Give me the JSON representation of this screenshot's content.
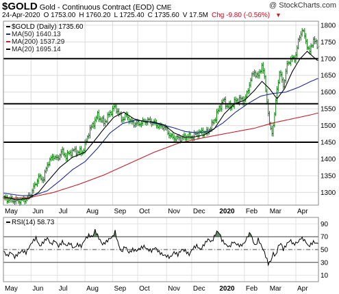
{
  "header": {
    "symbol": "$GOLD",
    "title": "Gold - Continuous Contract (EOD)",
    "exchange": "CME",
    "date": "24-Apr-2020",
    "open": "O 1753.00",
    "high": "H 1760.20",
    "low": "L 1725.40",
    "close": "C 1735.60",
    "volume": "V 17.5M",
    "change": "Chg -9.80 (-0.56%)",
    "watermark": "@ StockCharts.com"
  },
  "chart_data": [
    {
      "type": "line",
      "name": "price",
      "legend": [
        {
          "label": "$GOLD (Daily) 1735.60",
          "color": "#000000"
        },
        {
          "label": "MA(50) 1640.13",
          "color": "#1f2c8f"
        },
        {
          "label": "MA(200) 1537.29",
          "color": "#c0202a"
        },
        {
          "label": "MA(20) 1695.14",
          "color": "#000000"
        }
      ],
      "months": [
        {
          "label": "May",
          "d": 0
        },
        {
          "label": "Jun",
          "d": 22
        },
        {
          "label": "Jul",
          "d": 43
        },
        {
          "label": "Aug",
          "d": 65
        },
        {
          "label": "Sep",
          "d": 87
        },
        {
          "label": "Oct",
          "d": 107
        },
        {
          "label": "Nov",
          "d": 130
        },
        {
          "label": "Dec",
          "d": 150
        },
        {
          "label": "2020",
          "d": 171,
          "bold": true
        },
        {
          "label": "Feb",
          "d": 192
        },
        {
          "label": "Mar",
          "d": 211
        },
        {
          "label": "Apr",
          "d": 233
        }
      ],
      "yticks": [
        1300,
        1350,
        1400,
        1450,
        1500,
        1550,
        1600,
        1650,
        1700,
        1750,
        1800
      ],
      "ylim": [
        1262,
        1812
      ],
      "xlim": [
        0,
        251
      ],
      "hlines": [
        1700,
        1565,
        1450
      ],
      "keypoints": [
        [
          0,
          1282
        ],
        [
          8,
          1276
        ],
        [
          14,
          1275
        ],
        [
          19,
          1282
        ],
        [
          22,
          1296
        ],
        [
          25,
          1322
        ],
        [
          28,
          1345
        ],
        [
          32,
          1340
        ],
        [
          35,
          1385
        ],
        [
          40,
          1410
        ],
        [
          43,
          1398
        ],
        [
          46,
          1423
        ],
        [
          50,
          1408
        ],
        [
          53,
          1418
        ],
        [
          56,
          1425
        ],
        [
          60,
          1420
        ],
        [
          63,
          1422
        ],
        [
          65,
          1440
        ],
        [
          68,
          1480
        ],
        [
          72,
          1508
        ],
        [
          75,
          1530
        ],
        [
          80,
          1508
        ],
        [
          83,
          1525
        ],
        [
          88,
          1555
        ],
        [
          91,
          1545
        ],
        [
          94,
          1518
        ],
        [
          98,
          1530
        ],
        [
          102,
          1508
        ],
        [
          107,
          1505
        ],
        [
          111,
          1510
        ],
        [
          115,
          1515
        ],
        [
          120,
          1508
        ],
        [
          125,
          1495
        ],
        [
          128,
          1498
        ],
        [
          130,
          1485
        ],
        [
          134,
          1465
        ],
        [
          138,
          1462
        ],
        [
          142,
          1462
        ],
        [
          146,
          1468
        ],
        [
          150,
          1465
        ],
        [
          154,
          1476
        ],
        [
          158,
          1480
        ],
        [
          162,
          1478
        ],
        [
          166,
          1500
        ],
        [
          169,
          1525
        ],
        [
          172,
          1552
        ],
        [
          175,
          1575
        ],
        [
          178,
          1560
        ],
        [
          181,
          1555
        ],
        [
          184,
          1570
        ],
        [
          188,
          1580
        ],
        [
          191,
          1573
        ],
        [
          194,
          1592
        ],
        [
          197,
          1640
        ],
        [
          200,
          1660
        ],
        [
          203,
          1645
        ],
        [
          206,
          1682
        ],
        [
          208,
          1640
        ],
        [
          210,
          1575
        ],
        [
          212,
          1500
        ],
        [
          214,
          1480
        ],
        [
          216,
          1530
        ],
        [
          218,
          1610
        ],
        [
          220,
          1660
        ],
        [
          223,
          1620
        ],
        [
          226,
          1680
        ],
        [
          229,
          1700
        ],
        [
          232,
          1698
        ],
        [
          235,
          1750
        ],
        [
          238,
          1790
        ],
        [
          241,
          1752
        ],
        [
          244,
          1718
        ],
        [
          247,
          1760
        ],
        [
          250,
          1736
        ]
      ],
      "ma50_points": [
        [
          0,
          1298
        ],
        [
          15,
          1290
        ],
        [
          25,
          1292
        ],
        [
          35,
          1305
        ],
        [
          45,
          1335
        ],
        [
          55,
          1368
        ],
        [
          65,
          1392
        ],
        [
          75,
          1432
        ],
        [
          85,
          1478
        ],
        [
          95,
          1506
        ],
        [
          105,
          1516
        ],
        [
          115,
          1512
        ],
        [
          125,
          1503
        ],
        [
          135,
          1494
        ],
        [
          145,
          1482
        ],
        [
          155,
          1478
        ],
        [
          165,
          1484
        ],
        [
          175,
          1508
        ],
        [
          185,
          1540
        ],
        [
          195,
          1566
        ],
        [
          205,
          1588
        ],
        [
          215,
          1596
        ],
        [
          225,
          1600
        ],
        [
          235,
          1614
        ],
        [
          245,
          1632
        ],
        [
          250,
          1640
        ]
      ],
      "ma200_points": [
        [
          0,
          1282
        ],
        [
          20,
          1284
        ],
        [
          40,
          1300
        ],
        [
          60,
          1324
        ],
        [
          80,
          1352
        ],
        [
          100,
          1386
        ],
        [
          120,
          1420
        ],
        [
          140,
          1448
        ],
        [
          160,
          1464
        ],
        [
          180,
          1478
        ],
        [
          200,
          1492
        ],
        [
          215,
          1508
        ],
        [
          230,
          1520
        ],
        [
          245,
          1532
        ],
        [
          250,
          1537
        ]
      ],
      "ma20_points": [
        [
          0,
          1288
        ],
        [
          10,
          1278
        ],
        [
          20,
          1282
        ],
        [
          28,
          1300
        ],
        [
          35,
          1332
        ],
        [
          45,
          1375
        ],
        [
          55,
          1405
        ],
        [
          65,
          1420
        ],
        [
          72,
          1452
        ],
        [
          80,
          1490
        ],
        [
          88,
          1525
        ],
        [
          96,
          1540
        ],
        [
          104,
          1520
        ],
        [
          112,
          1512
        ],
        [
          120,
          1510
        ],
        [
          128,
          1502
        ],
        [
          136,
          1478
        ],
        [
          144,
          1465
        ],
        [
          152,
          1466
        ],
        [
          160,
          1472
        ],
        [
          168,
          1490
        ],
        [
          176,
          1535
        ],
        [
          184,
          1565
        ],
        [
          192,
          1575
        ],
        [
          200,
          1605
        ],
        [
          206,
          1632
        ],
        [
          212,
          1610
        ],
        [
          218,
          1580
        ],
        [
          224,
          1610
        ],
        [
          230,
          1660
        ],
        [
          236,
          1698
        ],
        [
          242,
          1722
        ],
        [
          250,
          1695
        ]
      ]
    },
    {
      "type": "line",
      "name": "rsi",
      "legend": [
        {
          "label": "RSI(14) 58.73",
          "color": "#000000"
        }
      ],
      "yticks": [
        10,
        30,
        50,
        70,
        90
      ],
      "ylim": [
        0,
        100
      ],
      "xlim": [
        0,
        251
      ],
      "levels": [
        70,
        50,
        30
      ],
      "keypoints": [
        [
          0,
          48
        ],
        [
          3,
          40
        ],
        [
          6,
          46
        ],
        [
          9,
          38
        ],
        [
          12,
          44
        ],
        [
          15,
          48
        ],
        [
          18,
          45
        ],
        [
          20,
          52
        ],
        [
          23,
          62
        ],
        [
          26,
          68
        ],
        [
          29,
          55
        ],
        [
          32,
          62
        ],
        [
          35,
          68
        ],
        [
          38,
          58
        ],
        [
          41,
          64
        ],
        [
          44,
          55
        ],
        [
          47,
          62
        ],
        [
          50,
          56
        ],
        [
          53,
          60
        ],
        [
          56,
          52
        ],
        [
          59,
          58
        ],
        [
          62,
          55
        ],
        [
          65,
          66
        ],
        [
          68,
          72
        ],
        [
          71,
          70
        ],
        [
          73,
          80
        ],
        [
          76,
          68
        ],
        [
          79,
          58
        ],
        [
          82,
          62
        ],
        [
          84,
          66
        ],
        [
          87,
          70
        ],
        [
          89,
          78
        ],
        [
          91,
          62
        ],
        [
          94,
          46
        ],
        [
          97,
          55
        ],
        [
          100,
          45
        ],
        [
          103,
          50
        ],
        [
          106,
          48
        ],
        [
          109,
          52
        ],
        [
          112,
          55
        ],
        [
          115,
          50
        ],
        [
          118,
          48
        ],
        [
          121,
          53
        ],
        [
          124,
          46
        ],
        [
          127,
          42
        ],
        [
          130,
          40
        ],
        [
          133,
          38
        ],
        [
          136,
          46
        ],
        [
          139,
          42
        ],
        [
          142,
          50
        ],
        [
          145,
          48
        ],
        [
          148,
          42
        ],
        [
          151,
          52
        ],
        [
          154,
          56
        ],
        [
          157,
          50
        ],
        [
          160,
          58
        ],
        [
          163,
          66
        ],
        [
          166,
          62
        ],
        [
          168,
          70
        ],
        [
          170,
          78
        ],
        [
          172,
          76
        ],
        [
          174,
          65
        ],
        [
          177,
          58
        ],
        [
          180,
          54
        ],
        [
          183,
          62
        ],
        [
          186,
          58
        ],
        [
          189,
          56
        ],
        [
          192,
          60
        ],
        [
          195,
          72
        ],
        [
          197,
          76
        ],
        [
          199,
          62
        ],
        [
          201,
          56
        ],
        [
          203,
          66
        ],
        [
          205,
          58
        ],
        [
          207,
          50
        ],
        [
          209,
          40
        ],
        [
          211,
          28
        ],
        [
          213,
          32
        ],
        [
          215,
          44
        ],
        [
          217,
          40
        ],
        [
          219,
          55
        ],
        [
          221,
          60
        ],
        [
          223,
          50
        ],
        [
          225,
          56
        ],
        [
          227,
          62
        ],
        [
          229,
          64
        ],
        [
          231,
          58
        ],
        [
          233,
          60
        ],
        [
          235,
          62
        ],
        [
          237,
          68
        ],
        [
          239,
          66
        ],
        [
          241,
          62
        ],
        [
          243,
          55
        ],
        [
          245,
          58
        ],
        [
          247,
          62
        ],
        [
          250,
          59
        ]
      ]
    }
  ]
}
